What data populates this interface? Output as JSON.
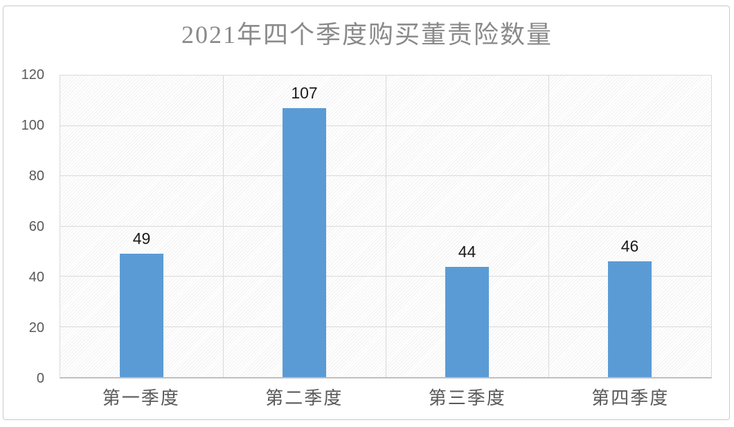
{
  "chart_data": {
    "type": "bar",
    "title": "2021年四个季度购买董责险数量",
    "categories": [
      "第一季度",
      "第二季度",
      "第三季度",
      "第四季度"
    ],
    "values": [
      49,
      107,
      44,
      46
    ],
    "data_labels": [
      "49",
      "107",
      "44",
      "46"
    ],
    "xlabel": "",
    "ylabel": "",
    "ylim": [
      0,
      120
    ],
    "yticks": [
      0,
      20,
      40,
      60,
      80,
      100,
      120
    ],
    "grid": true,
    "legend_position": "none",
    "colors": {
      "bar": "#5B9BD5",
      "title_text": "#8A8A8A",
      "axis_text": "#595959",
      "category_text": "#595959",
      "data_label_text": "#1A1A1A",
      "gridline": "#D9D9D9",
      "axis_line": "#BFBFBF",
      "chart_border": "#C9C9C9",
      "background": "#FFFFFF"
    }
  }
}
